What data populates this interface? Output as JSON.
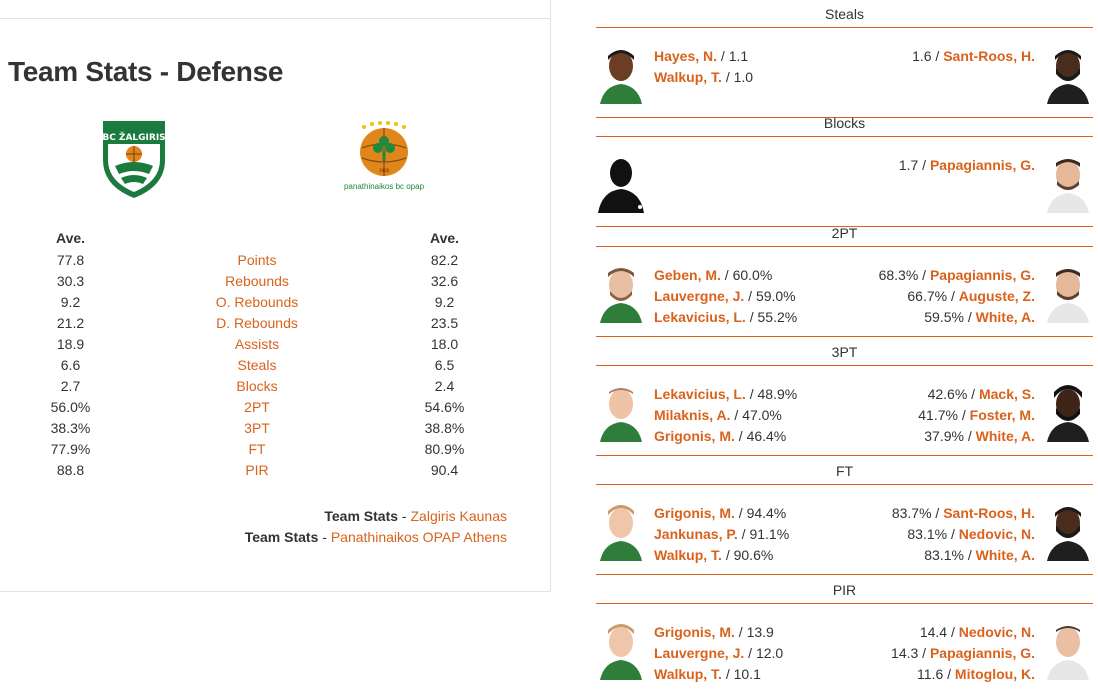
{
  "title": "Team Stats - Defense",
  "home_team": {
    "name": "Zalgiris Kaunas",
    "logo": "zalgiris-logo"
  },
  "away_team": {
    "name": "Panathinaikos OPAP Athens",
    "logo": "panathinaikos-logo",
    "logo_text": "panathinaikos bc opap"
  },
  "headers": {
    "home": "Ave.",
    "away": "Ave."
  },
  "stats": [
    {
      "label": "Points",
      "home": "77.8",
      "away": "82.2"
    },
    {
      "label": "Rebounds",
      "home": "30.3",
      "away": "32.6"
    },
    {
      "label": "O. Rebounds",
      "home": "9.2",
      "away": "9.2"
    },
    {
      "label": "D. Rebounds",
      "home": "21.2",
      "away": "23.5"
    },
    {
      "label": "Assists",
      "home": "18.9",
      "away": "18.0"
    },
    {
      "label": "Steals",
      "home": "6.6",
      "away": "6.5"
    },
    {
      "label": "Blocks",
      "home": "2.7",
      "away": "2.4"
    },
    {
      "label": "2PT",
      "home": "56.0%",
      "away": "54.6%"
    },
    {
      "label": "3PT",
      "home": "38.3%",
      "away": "38.8%"
    },
    {
      "label": "FT",
      "home": "77.9%",
      "away": "80.9%"
    },
    {
      "label": "PIR",
      "home": "88.8",
      "away": "90.4"
    }
  ],
  "team_links": {
    "prefix": "Team Stats",
    "separator": " - ",
    "home": "Zalgiris Kaunas",
    "away": "Panathinaikos OPAP Athens"
  },
  "leaders": [
    {
      "category": "Steals",
      "home": [
        {
          "name": "Hayes, N.",
          "value": "1.1"
        },
        {
          "name": "Walkup, T.",
          "value": "1.0"
        }
      ],
      "away": [
        {
          "name": "Sant-Roos, H.",
          "value": "1.6"
        }
      ],
      "home_avatar": "player-photo",
      "away_avatar": "player-photo"
    },
    {
      "category": "Blocks",
      "home": [],
      "away": [
        {
          "name": "Papagiannis, G.",
          "value": "1.7"
        }
      ],
      "home_avatar": "silhouette",
      "away_avatar": "player-photo"
    },
    {
      "category": "2PT",
      "home": [
        {
          "name": "Geben, M.",
          "value": "60.0%"
        },
        {
          "name": "Lauvergne, J.",
          "value": "59.0%"
        },
        {
          "name": "Lekavicius, L.",
          "value": "55.2%"
        }
      ],
      "away": [
        {
          "name": "Papagiannis, G.",
          "value": "68.3%"
        },
        {
          "name": "Auguste, Z.",
          "value": "66.7%"
        },
        {
          "name": "White, A.",
          "value": "59.5%"
        }
      ],
      "home_avatar": "player-photo",
      "away_avatar": "player-photo"
    },
    {
      "category": "3PT",
      "home": [
        {
          "name": "Lekavicius, L.",
          "value": "48.9%"
        },
        {
          "name": "Milaknis, A.",
          "value": "47.0%"
        },
        {
          "name": "Grigonis, M.",
          "value": "46.4%"
        }
      ],
      "away": [
        {
          "name": "Mack, S.",
          "value": "42.6%"
        },
        {
          "name": "Foster, M.",
          "value": "41.7%"
        },
        {
          "name": "White, A.",
          "value": "37.9%"
        }
      ],
      "home_avatar": "player-photo",
      "away_avatar": "player-photo"
    },
    {
      "category": "FT",
      "home": [
        {
          "name": "Grigonis, M.",
          "value": "94.4%"
        },
        {
          "name": "Jankunas, P.",
          "value": "91.1%"
        },
        {
          "name": "Walkup, T.",
          "value": "90.6%"
        }
      ],
      "away": [
        {
          "name": "Sant-Roos, H.",
          "value": "83.7%"
        },
        {
          "name": "Nedovic, N.",
          "value": "83.1%"
        },
        {
          "name": "White, A.",
          "value": "83.1%"
        }
      ],
      "home_avatar": "player-photo",
      "away_avatar": "player-photo"
    },
    {
      "category": "PIR",
      "home": [
        {
          "name": "Grigonis, M.",
          "value": "13.9"
        },
        {
          "name": "Lauvergne, J.",
          "value": "12.0"
        },
        {
          "name": "Walkup, T.",
          "value": "10.1"
        }
      ],
      "away": [
        {
          "name": "Nedovic, N.",
          "value": "14.4"
        },
        {
          "name": "Papagiannis, G.",
          "value": "14.3"
        },
        {
          "name": "Mitoglou, K.",
          "value": "11.6"
        }
      ],
      "home_avatar": "player-photo",
      "away_avatar": "player-photo"
    }
  ],
  "colors": {
    "accent": "#d9621c",
    "text": "#333333",
    "divider": "#e2e2e2",
    "zalgiris_green": "#1b7a3e",
    "pao_green": "#1f8a3b",
    "ball_orange": "#e0861b"
  }
}
